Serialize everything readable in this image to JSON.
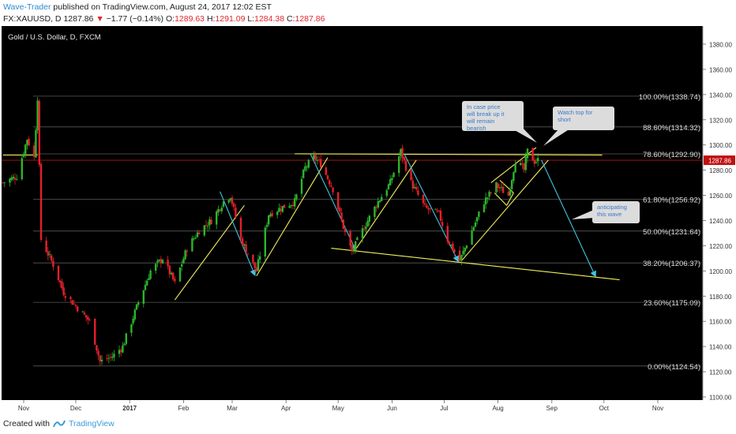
{
  "header": {
    "author": "Wave-Trader",
    "published": "published on TradingView.com, August 24, 2017 12:02 EST",
    "symbol": "FX:XAUUSD, D",
    "last": "1287.86",
    "change_arrow": "▼",
    "change": "−1.77 (−0.14%)",
    "o_label": "O:",
    "o": "1289.63",
    "h_label": "H:",
    "h": "1291.09",
    "l_label": "L:",
    "l": "1284.38",
    "c_label": "C:",
    "c": "1287.86"
  },
  "footer": {
    "created_with": "Created with",
    "brand": "TradingView"
  },
  "colors": {
    "bg": "#000000",
    "up": "#2cb52c",
    "down": "#e3202a",
    "yellow": "#f5ef5c",
    "cyan": "#3ec6e0",
    "fib": "#5a5a5a",
    "price_line": "#c01010"
  },
  "chart_data": {
    "type": "candlestick",
    "title": "Gold / U.S. Dollar, D, FXCM",
    "y_range": [
      1100,
      1390
    ],
    "y_ticks": [
      "1380.00",
      "1360.00",
      "1340.00",
      "1320.00",
      "1300.00",
      "1280.00",
      "1260.00",
      "1240.00",
      "1220.00",
      "1200.00",
      "1180.00",
      "1160.00",
      "1140.00",
      "1120.00",
      "1100.00"
    ],
    "x_ticks": [
      "Nov",
      "Dec",
      "2017",
      "Feb",
      "Mar",
      "Apr",
      "May",
      "Jun",
      "Jul",
      "Aug",
      "Sep",
      "Oct",
      "Nov"
    ],
    "x_tick_dates": [
      "2016-11-01",
      "2016-12-01",
      "2017-01-01",
      "2017-02-01",
      "2017-03-01",
      "2017-04-01",
      "2017-05-01",
      "2017-06-01",
      "2017-07-01",
      "2017-08-01",
      "2017-09-01",
      "2017-10-01",
      "2017-11-01"
    ],
    "current_price": 1287.86,
    "fib_levels": [
      {
        "label": "100.00%(1338.74)",
        "value": 1338.74
      },
      {
        "label": "88.60%(1314.32)",
        "value": 1314.32
      },
      {
        "label": "78.60%(1292.90)",
        "value": 1292.9
      },
      {
        "label": "61.80%(1256.92)",
        "value": 1256.92
      },
      {
        "label": "50.00%(1231.64)",
        "value": 1231.64
      },
      {
        "label": "38.20%(1206.37)",
        "value": 1206.37
      },
      {
        "label": "23.60%(1175.09)",
        "value": 1175.09
      },
      {
        "label": "0.00%(1124.54)",
        "value": 1124.54
      }
    ],
    "price_path": [
      [
        "2016-10-20",
        1270
      ],
      [
        "2016-10-28",
        1275
      ],
      [
        "2016-11-03",
        1305
      ],
      [
        "2016-11-07",
        1290
      ],
      [
        "2016-11-09",
        1338
      ],
      [
        "2016-11-11",
        1225
      ],
      [
        "2016-11-18",
        1205
      ],
      [
        "2016-11-24",
        1183
      ],
      [
        "2016-12-01",
        1172
      ],
      [
        "2016-12-09",
        1160
      ],
      [
        "2016-12-15",
        1128
      ],
      [
        "2016-12-22",
        1132
      ],
      [
        "2016-12-28",
        1140
      ],
      [
        "2017-01-06",
        1175
      ],
      [
        "2017-01-13",
        1200
      ],
      [
        "2017-01-20",
        1210
      ],
      [
        "2017-01-27",
        1190
      ],
      [
        "2017-02-03",
        1218
      ],
      [
        "2017-02-10",
        1232
      ],
      [
        "2017-02-17",
        1240
      ],
      [
        "2017-02-24",
        1255
      ],
      [
        "2017-02-28",
        1260
      ],
      [
        "2017-03-06",
        1225
      ],
      [
        "2017-03-15",
        1200
      ],
      [
        "2017-03-22",
        1245
      ],
      [
        "2017-03-29",
        1250
      ],
      [
        "2017-04-06",
        1255
      ],
      [
        "2017-04-12",
        1282
      ],
      [
        "2017-04-17",
        1290
      ],
      [
        "2017-04-21",
        1285
      ],
      [
        "2017-04-28",
        1265
      ],
      [
        "2017-05-05",
        1230
      ],
      [
        "2017-05-09",
        1215
      ],
      [
        "2017-05-16",
        1235
      ],
      [
        "2017-05-24",
        1255
      ],
      [
        "2017-05-31",
        1270
      ],
      [
        "2017-06-06",
        1295
      ],
      [
        "2017-06-12",
        1270
      ],
      [
        "2017-06-20",
        1250
      ],
      [
        "2017-06-28",
        1245
      ],
      [
        "2017-07-03",
        1225
      ],
      [
        "2017-07-10",
        1208
      ],
      [
        "2017-07-17",
        1232
      ],
      [
        "2017-07-24",
        1255
      ],
      [
        "2017-07-31",
        1268
      ],
      [
        "2017-08-07",
        1260
      ],
      [
        "2017-08-11",
        1288
      ],
      [
        "2017-08-16",
        1280
      ],
      [
        "2017-08-18",
        1295
      ],
      [
        "2017-08-22",
        1287
      ],
      [
        "2017-08-24",
        1287.86
      ]
    ],
    "drawings": [
      {
        "type": "trendline",
        "color": "yellow",
        "points": [
          [
            "2016-10-20",
            1292
          ],
          [
            "2016-11-10",
            1293
          ]
        ]
      }
    ],
    "annotations": [
      {
        "text": "In case price will break up it will remain bearish"
      },
      {
        "text": "Watch top for short"
      },
      {
        "text": "anticipating this wave"
      }
    ],
    "fib_label_suffix": ""
  }
}
